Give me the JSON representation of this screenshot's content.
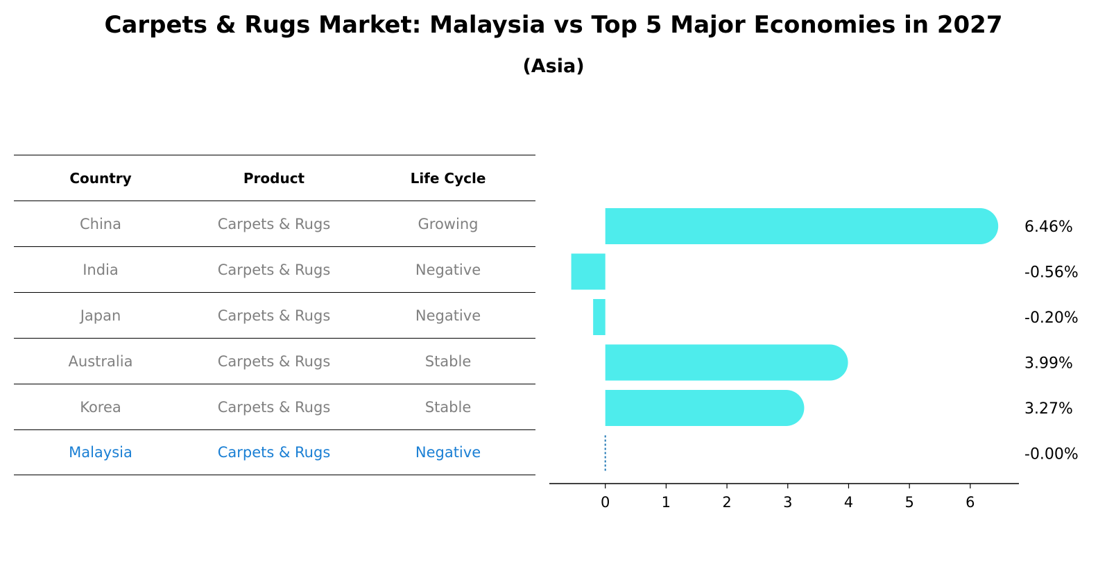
{
  "title": "Carpets & Rugs Market: Malaysia vs Top 5 Major Economies in 2027",
  "subtitle": "(Asia)",
  "table": {
    "headers": [
      "Country",
      "Product",
      "Life Cycle"
    ],
    "rows": [
      [
        "China",
        "Carpets & Rugs",
        "Growing"
      ],
      [
        "India",
        "Carpets & Rugs",
        "Negative"
      ],
      [
        "Japan",
        "Carpets & Rugs",
        "Negative"
      ],
      [
        "Australia",
        "Carpets & Rugs",
        "Stable"
      ],
      [
        "Korea",
        "Carpets & Rugs",
        "Stable"
      ],
      [
        "Malaysia",
        "Carpets & Rugs",
        "Negative"
      ]
    ],
    "highlight_color": "#1a7fd4",
    "text_color": "#808080"
  },
  "chart_data": {
    "type": "bar",
    "orientation": "horizontal",
    "categories": [
      "China",
      "India",
      "Japan",
      "Australia",
      "Korea",
      "Malaysia"
    ],
    "values": [
      6.46,
      -0.56,
      -0.2,
      3.99,
      3.27,
      -0.0
    ],
    "value_labels": [
      "6.46%",
      "-0.56%",
      "-0.20%",
      "3.99%",
      "3.27%",
      "-0.00%"
    ],
    "xticks": [
      0,
      1,
      2,
      3,
      4,
      5,
      6
    ],
    "xlim": [
      -0.92,
      6.8
    ],
    "bar_color": "#4eecec",
    "zero_line_color": "#1f77b4"
  }
}
